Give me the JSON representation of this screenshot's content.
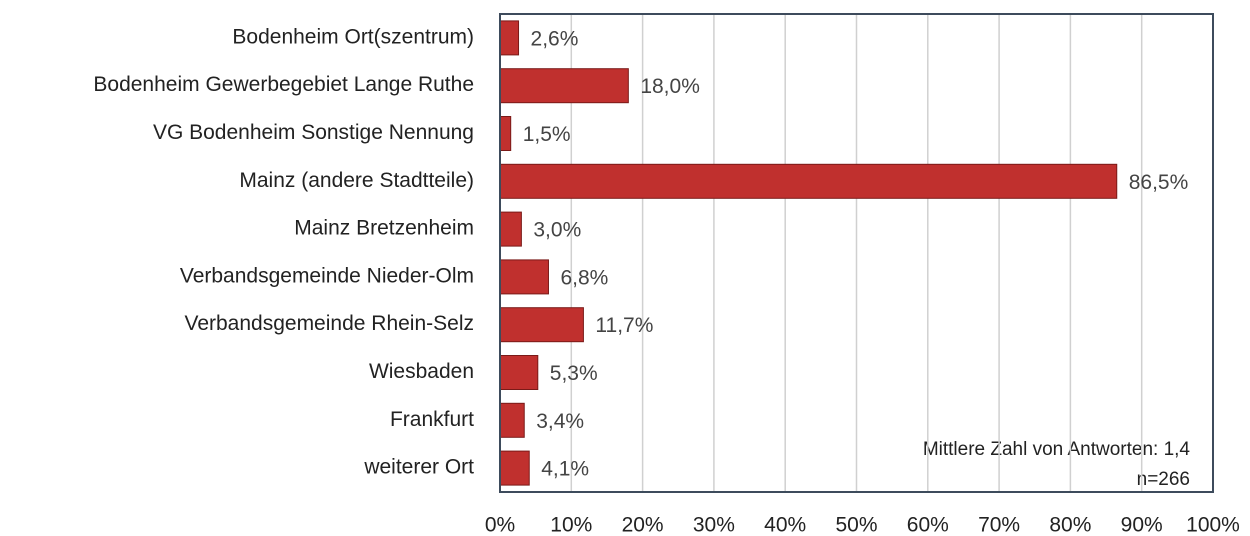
{
  "chart_data": {
    "type": "barh",
    "categories": [
      "Bodenheim Ort(szentrum)",
      "Bodenheim Gewerbegebiet Lange Ruthe",
      "VG Bodenheim Sonstige Nennung",
      "Mainz (andere Stadtteile)",
      "Mainz Bretzenheim",
      "Verbandsgemeinde Nieder-Olm",
      "Verbandsgemeinde Rhein-Selz",
      "Wiesbaden",
      "Frankfurt",
      "weiterer Ort"
    ],
    "values": [
      2.6,
      18.0,
      1.5,
      86.5,
      3.0,
      6.8,
      11.7,
      5.3,
      3.4,
      4.1
    ],
    "value_labels": [
      "2,6%",
      "18,0%",
      "1,5%",
      "86,5%",
      "3,0%",
      "6,8%",
      "11,7%",
      "5,3%",
      "3,4%",
      "4,1%"
    ],
    "color": "#c0302e",
    "xlim": [
      0,
      100
    ],
    "xticks": [
      {
        "value": 0,
        "label": "0%"
      },
      {
        "value": 10,
        "label": "10%"
      },
      {
        "value": 20,
        "label": "20%"
      },
      {
        "value": 30,
        "label": "30%"
      },
      {
        "value": 40,
        "label": "40%"
      },
      {
        "value": 50,
        "label": "50%"
      },
      {
        "value": 60,
        "label": "60%"
      },
      {
        "value": 70,
        "label": "70%"
      },
      {
        "value": 80,
        "label": "80%"
      },
      {
        "value": 90,
        "label": "90%"
      },
      {
        "value": 100,
        "label": "100%"
      }
    ],
    "grid": true,
    "annotations": [
      "Mittlere Zahl von Antworten: 1,4",
      "n=266"
    ]
  }
}
